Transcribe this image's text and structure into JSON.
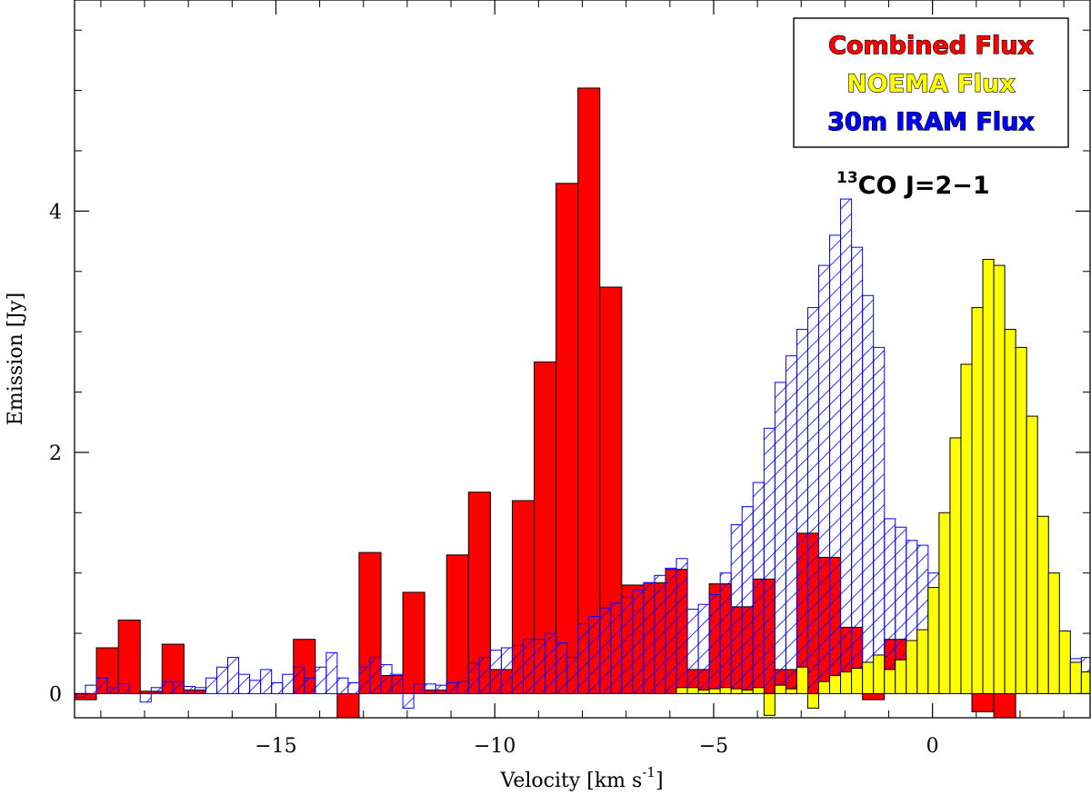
{
  "chart_data": {
    "type": "bar",
    "xlabel_main": "Velocity [km s",
    "xlabel_sup": "-1",
    "xlabel_end": "]",
    "ylabel": "Emission [Jy]",
    "xlim": [
      -19.6,
      3.6
    ],
    "ylim": [
      -0.2,
      5.75
    ],
    "x_ticks": [
      -15,
      -10,
      -5,
      0
    ],
    "x_tick_labels": [
      "−15",
      "−10",
      "−5",
      "0"
    ],
    "y_ticks": [
      0,
      2,
      4
    ],
    "y_tick_labels": [
      "0",
      "2",
      "4"
    ],
    "bin_width": 0.25,
    "x_start": -19.6,
    "legend": {
      "position": "top-right",
      "entries": [
        {
          "label": "Combined Flux",
          "color": "#ff0000"
        },
        {
          "label": "NOEMA Flux",
          "color": "#ffff00"
        },
        {
          "label": "30m IRAM Flux",
          "color": "#0000ff"
        }
      ]
    },
    "line_label": {
      "sup": "13",
      "text": "CO J=2−1"
    },
    "colors": {
      "combined_fill": "#ff0000",
      "noema_fill": "#ffff00",
      "iram_hatch": "#0000ff",
      "outline": "#000000"
    },
    "series": [
      {
        "name": "Combined Flux",
        "bin_width": 0.5,
        "x_start": -19.6,
        "values": [
          -0.05,
          0.38,
          0.61,
          0.02,
          0.41,
          0.03,
          0.0,
          0.0,
          0.0,
          0.0,
          0.45,
          0.0,
          -0.2,
          1.17,
          0.15,
          0.84,
          0.03,
          1.15,
          1.67,
          0.2,
          1.6,
          2.75,
          4.23,
          5.02,
          3.37,
          0.9,
          0.92,
          1.03,
          0.2,
          0.91,
          0.72,
          0.95,
          0.2,
          1.33,
          1.13,
          0.55,
          -0.05,
          0.45,
          0.05,
          0.12,
          0.02,
          -0.15,
          -0.2,
          0.66,
          0.0,
          0.0,
          0.0
        ]
      },
      {
        "name": "NOEMA Flux",
        "bin_width": 0.25,
        "x_start": -19.6,
        "values": [
          0.0,
          0.0,
          0.0,
          0.0,
          0.0,
          0.0,
          0.0,
          0.0,
          0.0,
          0.0,
          0.0,
          0.0,
          0.0,
          0.0,
          0.0,
          0.0,
          0.0,
          0.0,
          0.0,
          0.0,
          0.0,
          0.0,
          0.0,
          0.0,
          0.0,
          0.0,
          0.0,
          0.0,
          0.0,
          0.0,
          0.0,
          0.0,
          0.0,
          0.0,
          0.0,
          0.0,
          0.0,
          0.0,
          0.0,
          0.0,
          0.0,
          0.0,
          0.0,
          0.0,
          0.0,
          0.0,
          0.0,
          0.0,
          0.0,
          0.0,
          0.0,
          0.0,
          0.0,
          0.0,
          0.0,
          0.05,
          0.05,
          0.03,
          0.04,
          0.05,
          0.04,
          0.03,
          0.05,
          -0.18,
          0.07,
          0.04,
          0.22,
          -0.12,
          0.1,
          0.15,
          0.18,
          0.21,
          0.26,
          0.32,
          0.2,
          0.28,
          0.44,
          0.53,
          0.88,
          1.5,
          2.12,
          2.73,
          3.2,
          3.6,
          3.55,
          3.02,
          2.87,
          2.3,
          1.47,
          1.0,
          0.52,
          0.26,
          0.18,
          0.12,
          0.09,
          0.07,
          0.12,
          0.07,
          0.12,
          0.12,
          0.03,
          0.1,
          0.13,
          0.03,
          -0.03,
          0.12,
          0.03,
          -0.04,
          0.04,
          -0.05,
          0.03,
          -0.05,
          0.04,
          0.1,
          0.1,
          -0.1,
          -0.05,
          0.05,
          0.02,
          0.0,
          0.0,
          0.0,
          0.0,
          0.0,
          0.0,
          0.0,
          0.0,
          0.0,
          0.0,
          0.0,
          0.0,
          0.0,
          0.0,
          0.0,
          0.0,
          0.0,
          0.0,
          0.0,
          0.0,
          0.0,
          0.0,
          0.0,
          0.0,
          0.0,
          0.0,
          0.0,
          0.0,
          0.0,
          0.0,
          0.0,
          0.0,
          0.0,
          0.0,
          0.0,
          0.0,
          0.0,
          0.0,
          0.0,
          0.0,
          0.0,
          0.0,
          0.0,
          0.0,
          0.0,
          0.0,
          0.0,
          0.0,
          0.0,
          0.0
        ]
      },
      {
        "name": "30m IRAM Flux",
        "bin_width": 0.25,
        "x_start": -19.6,
        "values": [
          -0.03,
          0.07,
          0.13,
          0.05,
          0.08,
          0.0,
          -0.07,
          0.05,
          0.1,
          0.1,
          0.06,
          0.05,
          0.13,
          0.22,
          0.3,
          0.16,
          0.11,
          0.2,
          0.09,
          0.16,
          0.22,
          0.13,
          0.22,
          0.34,
          0.13,
          0.09,
          0.22,
          0.3,
          0.24,
          0.16,
          -0.12,
          0.08,
          0.08,
          0.07,
          0.09,
          0.1,
          0.25,
          0.3,
          0.36,
          0.38,
          0.4,
          0.45,
          0.45,
          0.5,
          0.42,
          0.3,
          0.58,
          0.64,
          0.71,
          0.75,
          0.8,
          0.86,
          0.92,
          0.98,
          1.04,
          1.12,
          0.7,
          0.74,
          0.82,
          1.0,
          1.4,
          1.55,
          1.75,
          2.2,
          2.58,
          2.8,
          3.02,
          3.2,
          3.55,
          3.8,
          4.1,
          3.7,
          3.3,
          2.87,
          1.45,
          1.38,
          1.27,
          1.23,
          1.0,
          0.85,
          0.78,
          0.72,
          0.67,
          0.63,
          0.58,
          0.48,
          0.46,
          0.39,
          0.35,
          0.37,
          0.31,
          0.29,
          0.3,
          0.33,
          0.3,
          0.39,
          0.49,
          0.54,
          0.57,
          0.45,
          0.25,
          0.16,
          0.2,
          0.15,
          0.41,
          0.42,
          0.1,
          0.06,
          0.08,
          0.07,
          0.05,
          0.09,
          0.05,
          0.07,
          0.0,
          -0.05,
          0.03,
          0.07,
          0.06,
          0.18,
          0.1,
          0.16,
          0.35,
          0.16,
          0.15,
          0.14,
          0.13,
          0.08,
          0.05,
          0.23,
          0.26,
          0.1,
          0.02,
          0.0,
          0.0,
          0.0,
          0.0,
          0.0,
          0.0,
          0.0,
          0.0,
          0.0,
          0.0,
          0.0,
          0.0,
          0.0,
          0.0,
          0.0,
          0.0,
          0.0,
          0.0,
          0.0,
          0.0,
          0.0,
          0.0,
          0.0,
          0.0,
          0.0,
          0.0,
          0.0,
          0.0,
          0.0,
          0.0,
          0.0,
          0.0,
          0.0,
          0.0,
          0.0,
          0.0,
          0.0,
          0.0,
          0.0,
          0.0
        ]
      }
    ]
  }
}
